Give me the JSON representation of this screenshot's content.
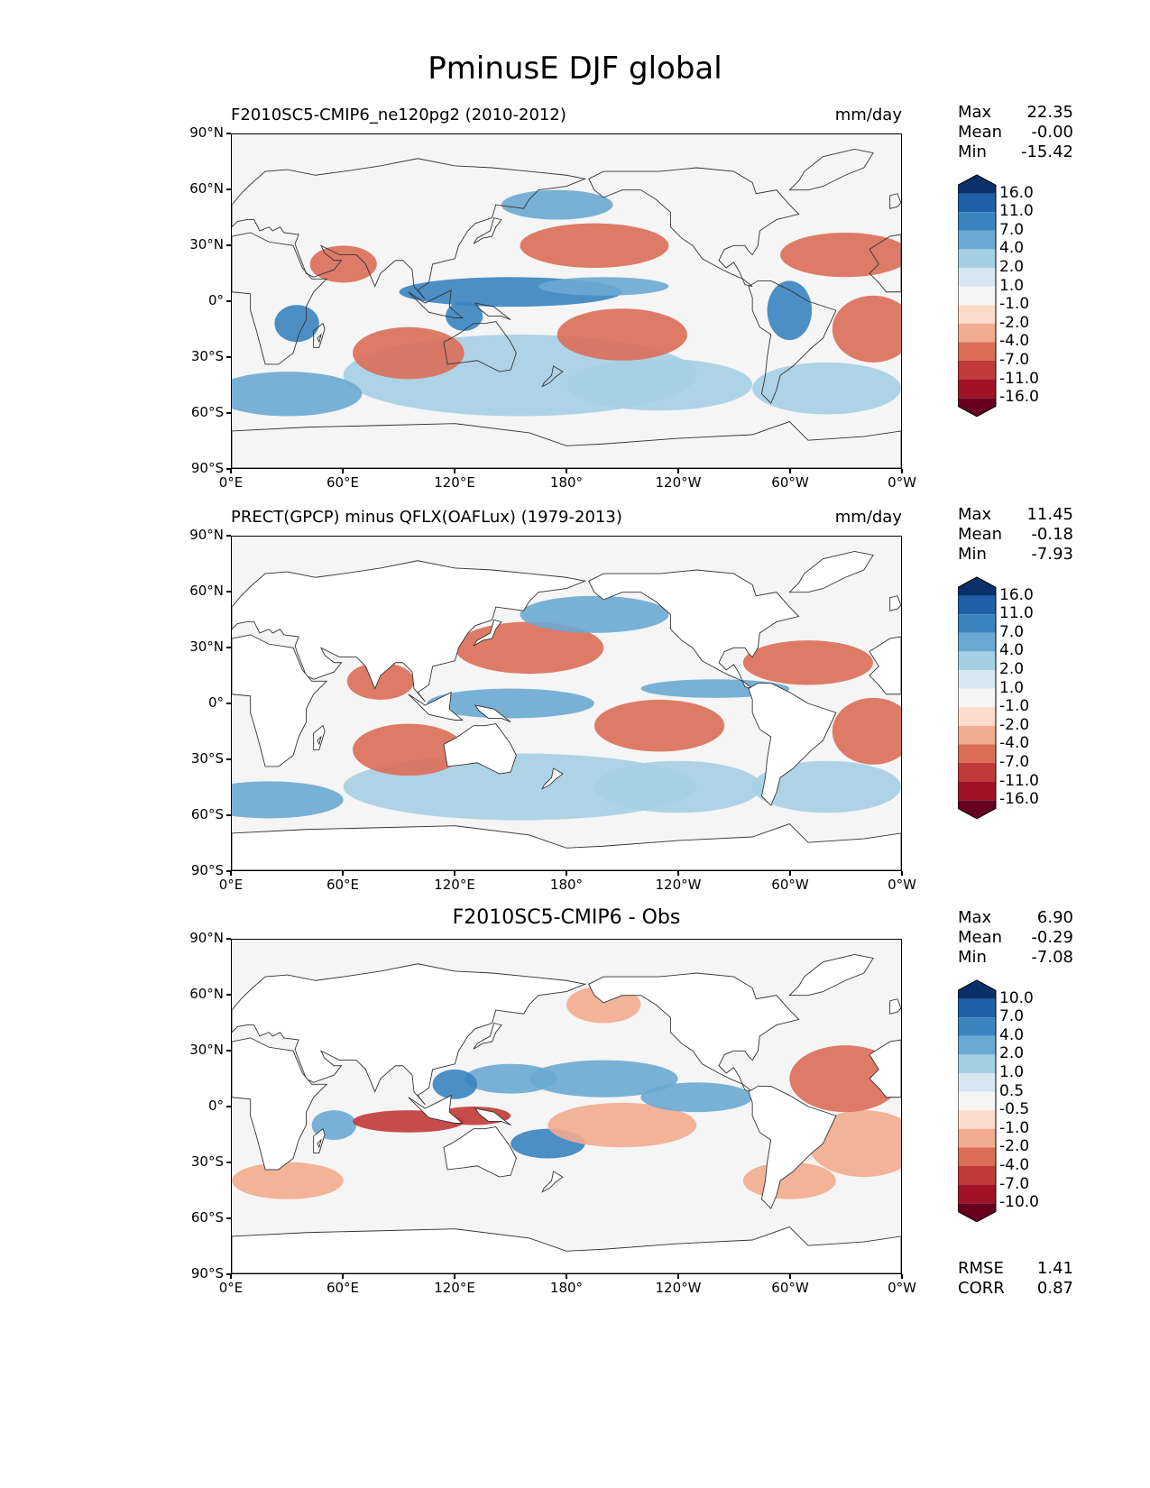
{
  "title": "PminusE DJF global",
  "y_ticks": [
    "90°N",
    "60°N",
    "30°N",
    "0°",
    "30°S",
    "60°S",
    "90°S"
  ],
  "x_ticks": [
    "0°E",
    "60°E",
    "120°E",
    "180°",
    "120°W",
    "60°W",
    "0°W"
  ],
  "panels": [
    {
      "id": "test",
      "title_left": "F2010SC5-CMIP6_ne120pg2 (2010-2012)",
      "title_right": "mm/day",
      "title_center": "",
      "stats": [
        {
          "label": "Max",
          "value": "22.35"
        },
        {
          "label": "Mean",
          "value": "-0.00"
        },
        {
          "label": "Min",
          "value": "-15.42"
        }
      ],
      "colorbar": {
        "labels": [
          "16.0",
          "11.0",
          "7.0",
          "4.0",
          "2.0",
          "1.0",
          "-1.0",
          "-2.0",
          "-4.0",
          "-7.0",
          "-11.0",
          "-16.0"
        ],
        "colors": [
          "#08306b",
          "#1f5fa8",
          "#3a84c0",
          "#6aaad2",
          "#a7cfe4",
          "#d6e7f2",
          "#f5f5f5",
          "#fbdccc",
          "#f2ac8f",
          "#dc6e58",
          "#c13a3a",
          "#a11226",
          "#67001f"
        ]
      }
    },
    {
      "id": "reference",
      "title_left": "PRECT(GPCP) minus QFLX(OAFLux) (1979-2013)",
      "title_right": "mm/day",
      "title_center": "",
      "stats": [
        {
          "label": "Max",
          "value": "11.45"
        },
        {
          "label": "Mean",
          "value": "-0.18"
        },
        {
          "label": "Min",
          "value": "-7.93"
        }
      ],
      "colorbar": {
        "labels": [
          "16.0",
          "11.0",
          "7.0",
          "4.0",
          "2.0",
          "1.0",
          "-1.0",
          "-2.0",
          "-4.0",
          "-7.0",
          "-11.0",
          "-16.0"
        ],
        "colors": [
          "#08306b",
          "#1f5fa8",
          "#3a84c0",
          "#6aaad2",
          "#a7cfe4",
          "#d6e7f2",
          "#f5f5f5",
          "#fbdccc",
          "#f2ac8f",
          "#dc6e58",
          "#c13a3a",
          "#a11226",
          "#67001f"
        ]
      }
    },
    {
      "id": "difference",
      "title_left": "",
      "title_right": "",
      "title_center": "F2010SC5-CMIP6 - Obs",
      "stats": [
        {
          "label": "Max",
          "value": "6.90"
        },
        {
          "label": "Mean",
          "value": "-0.29"
        },
        {
          "label": "Min",
          "value": "-7.08"
        }
      ],
      "colorbar": {
        "labels": [
          "10.0",
          "7.0",
          "4.0",
          "2.0",
          "1.0",
          "0.5",
          "-0.5",
          "-1.0",
          "-2.0",
          "-4.0",
          "-7.0",
          "-10.0"
        ],
        "colors": [
          "#08306b",
          "#1f5fa8",
          "#3a84c0",
          "#6aaad2",
          "#a7cfe4",
          "#d6e7f2",
          "#f5f5f5",
          "#fbdccc",
          "#f2ac8f",
          "#dc6e58",
          "#c13a3a",
          "#a11226",
          "#67001f"
        ]
      },
      "metrics": [
        {
          "label": "RMSE",
          "value": "1.41"
        },
        {
          "label": "CORR",
          "value": "0.87"
        }
      ]
    }
  ]
}
